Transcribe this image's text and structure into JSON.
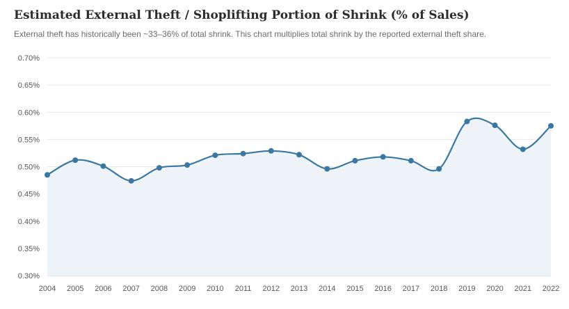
{
  "header": {
    "title": "Estimated External Theft / Shoplifting Portion of Shrink (% of Sales)",
    "subtitle": "External theft has historically been ~33–36% of total shrink. This chart multiplies total shrink by the reported external theft share."
  },
  "colors": {
    "line": "#3a78a1",
    "fill": "#eef3f7",
    "grid": "#e6e6e6",
    "axis": "#cccccc"
  },
  "chart_data": {
    "type": "area",
    "title": "Estimated External Theft / Shoplifting Portion of Shrink (% of Sales)",
    "xlabel": "",
    "ylabel": "",
    "x": [
      "2004",
      "2005",
      "2006",
      "2007",
      "2008",
      "2009",
      "2010",
      "2011",
      "2012",
      "2013",
      "2014",
      "2015",
      "2016",
      "2017",
      "2018",
      "2019",
      "2020",
      "2021",
      "2022"
    ],
    "values": [
      0.485,
      0.512,
      0.501,
      0.474,
      0.498,
      0.503,
      0.521,
      0.524,
      0.529,
      0.522,
      0.496,
      0.511,
      0.518,
      0.511,
      0.496,
      0.583,
      0.576,
      0.532,
      0.575
    ],
    "ylim": [
      0.3,
      0.7
    ],
    "yticks": [
      0.3,
      0.35,
      0.4,
      0.45,
      0.5,
      0.55,
      0.6,
      0.65,
      0.7
    ],
    "ytick_labels": [
      "0.30%",
      "0.35%",
      "0.40%",
      "0.45%",
      "0.50%",
      "0.55%",
      "0.60%",
      "0.65%",
      "0.70%"
    ],
    "grid": true,
    "legend": "none"
  }
}
